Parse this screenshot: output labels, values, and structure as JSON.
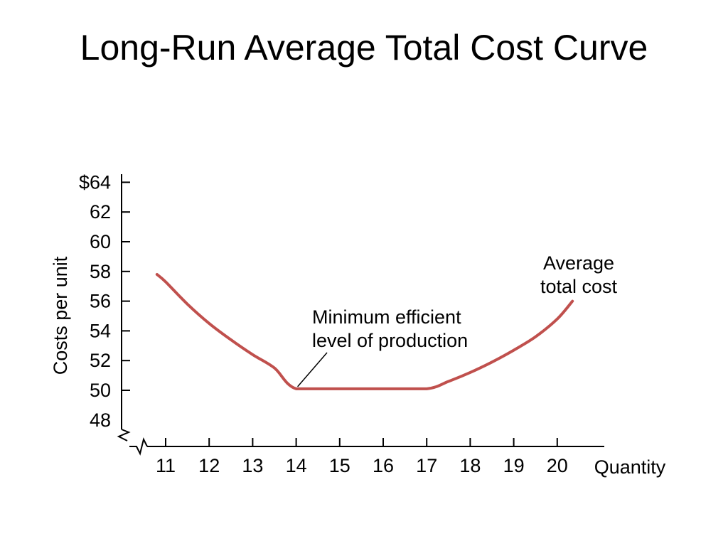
{
  "chart_data": {
    "type": "line",
    "title": "Long-Run Average Total Cost Curve",
    "xlabel": "Quantity",
    "ylabel": "Costs per unit",
    "x_ticks": [
      "11",
      "12",
      "13",
      "14",
      "15",
      "16",
      "17",
      "18",
      "19",
      "20"
    ],
    "y_ticks": [
      "$64",
      "62",
      "60",
      "58",
      "56",
      "54",
      "52",
      "50",
      "48"
    ],
    "xlim": [
      10.6,
      21.0
    ],
    "ylim": [
      48,
      65
    ],
    "axis_break": true,
    "grid": false,
    "series": [
      {
        "name": "Average total cost",
        "color": "#c0504d",
        "x": [
          10.8,
          11.0,
          11.5,
          12.0,
          12.5,
          13.0,
          13.5,
          14.0,
          15.0,
          16.0,
          17.0,
          17.5,
          18.0,
          18.5,
          19.0,
          19.5,
          20.0,
          20.35
        ],
        "y": [
          57.8,
          57.3,
          55.8,
          54.5,
          53.4,
          52.4,
          51.5,
          50.1,
          50.1,
          50.1,
          50.1,
          50.6,
          51.2,
          51.9,
          52.7,
          53.6,
          54.8,
          56.0
        ]
      }
    ],
    "annotations": [
      {
        "text_lines": [
          "Average",
          "total cost"
        ],
        "points_to": "curve end"
      },
      {
        "text_lines": [
          "Minimum efficient",
          "level of production"
        ],
        "points_to": [
          14,
          50.1
        ]
      }
    ]
  }
}
